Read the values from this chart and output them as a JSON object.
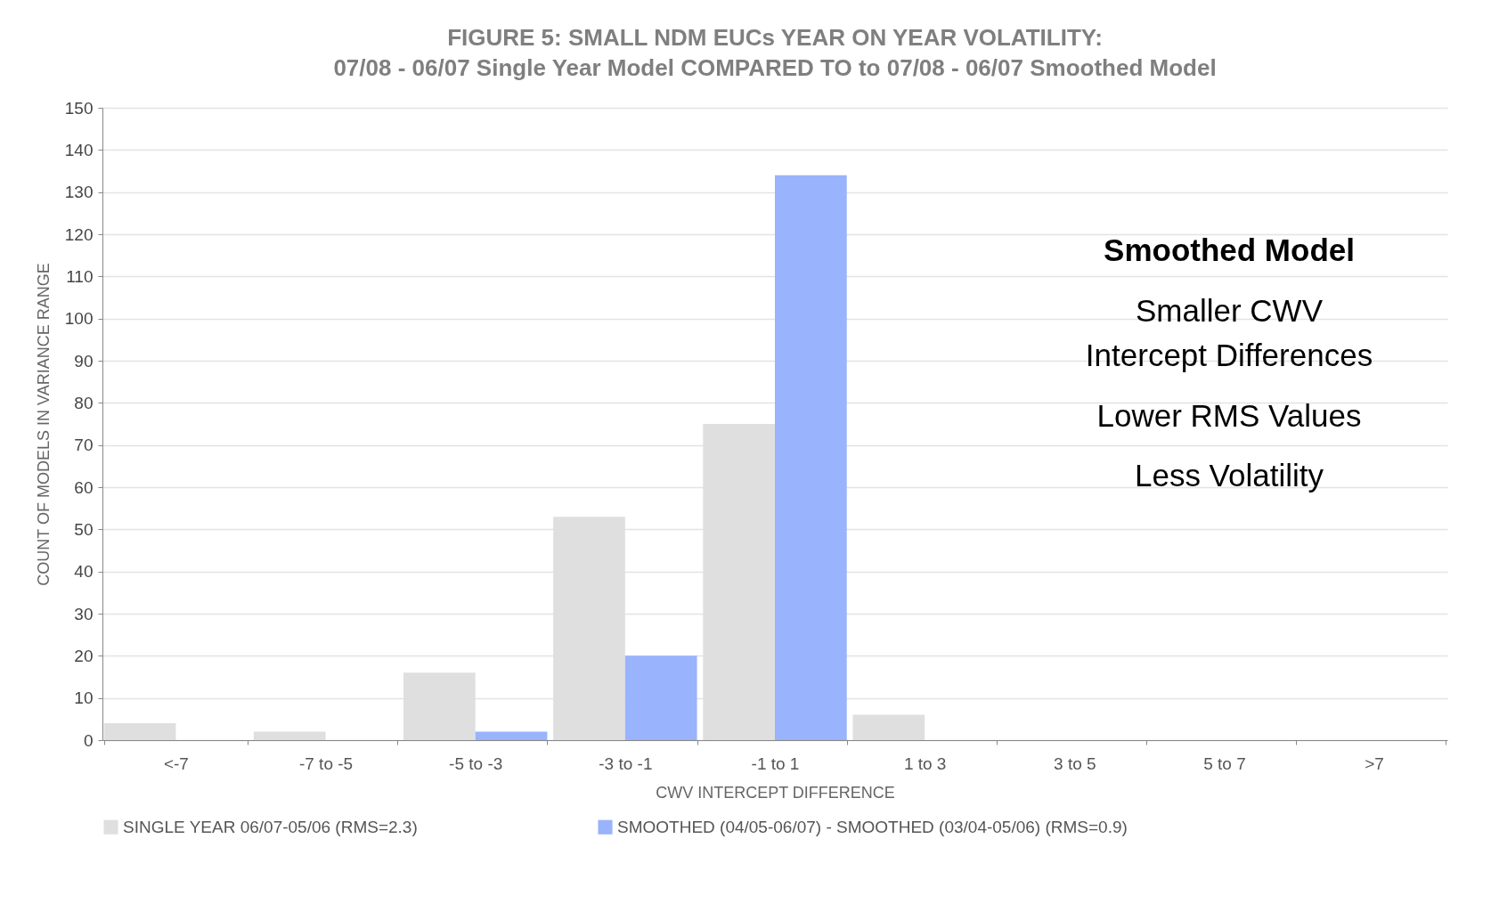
{
  "chart_data": {
    "type": "bar",
    "title": "FIGURE 5: SMALL NDM EUCs YEAR ON YEAR VOLATILITY:",
    "subtitle": "07/08 - 06/07 Single Year Model COMPARED TO to 07/08 - 06/07 Smoothed Model",
    "xlabel": "CWV INTERCEPT DIFFERENCE",
    "ylabel": "COUNT OF MODELS IN VARIANCE RANGE",
    "categories": [
      "<-7",
      "-7 to -5",
      "-5 to -3",
      "-3 to -1",
      "-1 to 1",
      "1 to 3",
      "3 to 5",
      "5 to 7",
      ">7"
    ],
    "series": [
      {
        "name": "SINGLE YEAR 06/07-05/06 (RMS=2.3)",
        "color": "#dfdfdf",
        "values": [
          4,
          2,
          16,
          53,
          75,
          6,
          0,
          0,
          0
        ]
      },
      {
        "name": "SMOOTHED (04/05-06/07) - SMOOTHED (03/04-05/06) (RMS=0.9)",
        "color": "#99b3fc",
        "values": [
          0,
          0,
          2,
          20,
          134,
          0,
          0,
          0,
          0
        ]
      }
    ],
    "ylim": [
      0,
      150
    ],
    "yticks": [
      0,
      10,
      20,
      30,
      40,
      50,
      60,
      70,
      80,
      90,
      100,
      110,
      120,
      130,
      140,
      150
    ],
    "grid": "y",
    "legend": "bottom",
    "annotations": [
      "Smoothed Model",
      "Smaller CWV",
      "Intercept Differences",
      "Lower RMS Values",
      "Less Volatility"
    ]
  }
}
